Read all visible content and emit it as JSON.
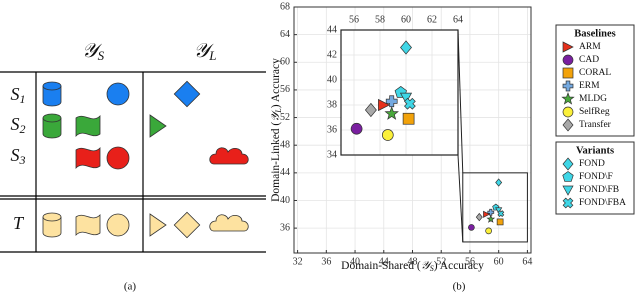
{
  "diagram": {
    "columns": [
      {
        "symbol": "𝒴",
        "subscript": "S"
      },
      {
        "symbol": "𝒴",
        "subscript": "L"
      }
    ],
    "rows": [
      {
        "symbol": "S",
        "subscript": "1"
      },
      {
        "symbol": "S",
        "subscript": "2"
      },
      {
        "symbol": "S",
        "subscript": "3"
      },
      {
        "symbol": "T"
      }
    ],
    "caption": "(a)"
  },
  "chart_data": {
    "type": "scatter",
    "caption": "(b)",
    "xlabel": {
      "before": "Domain-Shared (",
      "symbol": "𝒴",
      "subscript": "S",
      "after": ") Accuracy"
    },
    "ylabel": {
      "before": "Domain-Linked (",
      "symbol": "𝒴",
      "subscript": "L",
      "after": ") Accuracy"
    },
    "xlim": [
      31.5,
      64.5
    ],
    "ylim": [
      32.4,
      68
    ],
    "xticks": [
      32,
      36,
      40,
      44,
      48,
      52,
      56,
      60,
      64
    ],
    "yticks": [
      36,
      40,
      44,
      48,
      52,
      56,
      60,
      64,
      68
    ],
    "grid": true,
    "inset": {
      "xlim": [
        55,
        64
      ],
      "ylim": [
        34,
        44
      ],
      "xticks": [
        56,
        58,
        60,
        62,
        64
      ],
      "yticks": [
        34,
        36,
        38,
        40,
        42,
        44
      ]
    },
    "legend_groups": [
      {
        "title": "Baselines",
        "series": [
          {
            "name": "ARM",
            "color": "#e5311c",
            "marker": "triangle-right",
            "x": 58.3,
            "y": 38.0
          },
          {
            "name": "CAD",
            "color": "#7a1fa0",
            "marker": "circle",
            "x": 56.2,
            "y": 36.1
          },
          {
            "name": "CORAL",
            "color": "#f2a20a",
            "marker": "square",
            "x": 60.2,
            "y": 36.9
          },
          {
            "name": "ERM",
            "color": "#74a9e0",
            "marker": "plus",
            "x": 58.9,
            "y": 38.3
          },
          {
            "name": "MLDG",
            "color": "#4aa83c",
            "marker": "star",
            "x": 58.9,
            "y": 37.3
          },
          {
            "name": "SelfReg",
            "color": "#fbf03a",
            "marker": "circle",
            "x": 58.6,
            "y": 35.6
          },
          {
            "name": "Transfer",
            "color": "#a8a8a8",
            "marker": "diamond",
            "x": 57.3,
            "y": 37.6
          }
        ]
      },
      {
        "title": "Variants",
        "series": [
          {
            "name": "FOND",
            "color": "#3fd6e6",
            "marker": "diamond",
            "x": 60.0,
            "y": 42.6
          },
          {
            "name": "FOND\\F",
            "color": "#3fd6e6",
            "marker": "pentagon",
            "x": 59.6,
            "y": 39.0
          },
          {
            "name": "FOND\\FB",
            "color": "#3fd6e6",
            "marker": "triangle-down",
            "x": 60.0,
            "y": 38.6
          },
          {
            "name": "FOND\\FBA",
            "color": "#3fd6e6",
            "marker": "x",
            "x": 60.3,
            "y": 38.1
          }
        ]
      }
    ]
  }
}
